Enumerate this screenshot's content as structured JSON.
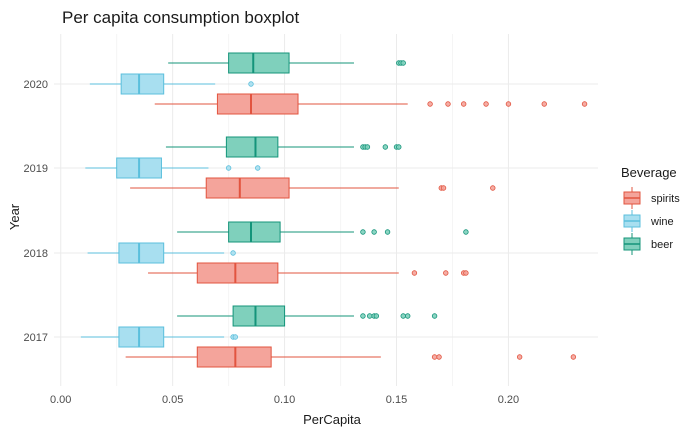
{
  "chart_data": {
    "type": "boxplot",
    "orientation": "horizontal",
    "title": "Per capita consumption boxplot",
    "xlabel": "PerCapita",
    "ylabel": "Year",
    "xlim": [
      -0.003,
      0.24
    ],
    "x_ticks": [
      "0.00",
      "0.05",
      "0.10",
      "0.15",
      "0.20"
    ],
    "x_tick_values": [
      0,
      0.05,
      0.1,
      0.15,
      0.2
    ],
    "categories": [
      "2017",
      "2018",
      "2019",
      "2020"
    ],
    "grid": true,
    "legend": {
      "title": "Beverage",
      "position": "right",
      "entries": [
        "spirits",
        "wine",
        "beer"
      ]
    },
    "colors": {
      "spirits": {
        "fill": "#f4a49b",
        "stroke": "#e2543f"
      },
      "wine": {
        "fill": "#a8dff0",
        "stroke": "#5bbfdc"
      },
      "beer": {
        "fill": "#7fd0bc",
        "stroke": "#14947a"
      }
    },
    "series": [
      {
        "name": "beer",
        "boxes": [
          {
            "category": "2017",
            "whisker_low": 0.052,
            "q1": 0.077,
            "median": 0.087,
            "q3": 0.1,
            "whisker_high": 0.131,
            "outliers": [
              0.135,
              0.138,
              0.14,
              0.141,
              0.153,
              0.155,
              0.167
            ]
          },
          {
            "category": "2018",
            "whisker_low": 0.052,
            "q1": 0.075,
            "median": 0.085,
            "q3": 0.098,
            "whisker_high": 0.131,
            "outliers": [
              0.135,
              0.14,
              0.146,
              0.181
            ]
          },
          {
            "category": "2019",
            "whisker_low": 0.047,
            "q1": 0.074,
            "median": 0.087,
            "q3": 0.097,
            "whisker_high": 0.131,
            "outliers": [
              0.135,
              0.136,
              0.137,
              0.145,
              0.15,
              0.151
            ]
          },
          {
            "category": "2020",
            "whisker_low": 0.048,
            "q1": 0.075,
            "median": 0.086,
            "q3": 0.102,
            "whisker_high": 0.131,
            "outliers": [
              0.151,
              0.152,
              0.153
            ]
          }
        ]
      },
      {
        "name": "wine",
        "boxes": [
          {
            "category": "2017",
            "whisker_low": 0.009,
            "q1": 0.026,
            "median": 0.035,
            "q3": 0.046,
            "whisker_high": 0.073,
            "outliers": [
              0.077,
              0.078
            ]
          },
          {
            "category": "2018",
            "whisker_low": 0.012,
            "q1": 0.026,
            "median": 0.035,
            "q3": 0.046,
            "whisker_high": 0.073,
            "outliers": [
              0.077
            ]
          },
          {
            "category": "2019",
            "whisker_low": 0.011,
            "q1": 0.025,
            "median": 0.035,
            "q3": 0.045,
            "whisker_high": 0.066,
            "outliers": [
              0.075,
              0.088
            ]
          },
          {
            "category": "2020",
            "whisker_low": 0.013,
            "q1": 0.027,
            "median": 0.035,
            "q3": 0.046,
            "whisker_high": 0.069,
            "outliers": [
              0.085
            ]
          }
        ]
      },
      {
        "name": "spirits",
        "boxes": [
          {
            "category": "2017",
            "whisker_low": 0.029,
            "q1": 0.061,
            "median": 0.078,
            "q3": 0.094,
            "whisker_high": 0.143,
            "outliers": [
              0.167,
              0.169,
              0.205,
              0.229
            ]
          },
          {
            "category": "2018",
            "whisker_low": 0.039,
            "q1": 0.061,
            "median": 0.078,
            "q3": 0.097,
            "whisker_high": 0.151,
            "outliers": [
              0.158,
              0.172,
              0.18,
              0.181
            ]
          },
          {
            "category": "2019",
            "whisker_low": 0.031,
            "q1": 0.065,
            "median": 0.08,
            "q3": 0.102,
            "whisker_high": 0.151,
            "outliers": [
              0.17,
              0.171,
              0.193
            ]
          },
          {
            "category": "2020",
            "whisker_low": 0.042,
            "q1": 0.07,
            "median": 0.085,
            "q3": 0.106,
            "whisker_high": 0.155,
            "outliers": [
              0.165,
              0.173,
              0.18,
              0.19,
              0.2,
              0.216,
              0.234
            ]
          }
        ]
      }
    ]
  }
}
